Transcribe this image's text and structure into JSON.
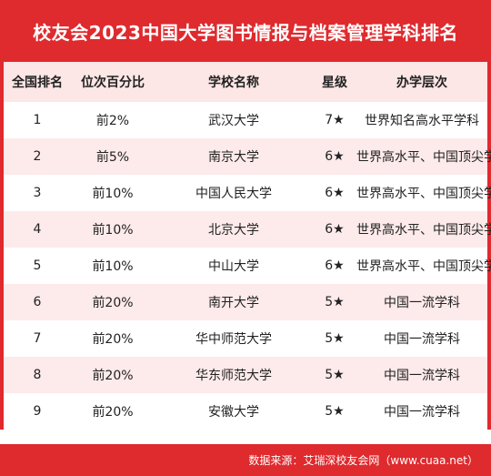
{
  "title": "校友会2023中国大学图书情报与档案管理学科排名",
  "headers": [
    "全国排名",
    "位次百分比",
    "学校名称",
    "星级",
    "办学层次"
  ],
  "rows": [
    {
      "rank": "1",
      "percentile": "前2%",
      "school": "武汉大学",
      "stars": "7★",
      "level": "世界知名高水平学科"
    },
    {
      "rank": "2",
      "percentile": "前5%",
      "school": "南京大学",
      "stars": "6★",
      "level": "世界高水平、中国顶尖学科"
    },
    {
      "rank": "3",
      "percentile": "前10%",
      "school": "中国人民大学",
      "stars": "6★",
      "level": "世界高水平、中国顶尖学科"
    },
    {
      "rank": "4",
      "percentile": "前10%",
      "school": "北京大学",
      "stars": "6★",
      "level": "世界高水平、中国顶尖学科"
    },
    {
      "rank": "5",
      "percentile": "前10%",
      "school": "中山大学",
      "stars": "6★",
      "level": "世界高水平、中国顶尖学科"
    },
    {
      "rank": "6",
      "percentile": "前20%",
      "school": "南开大学",
      "stars": "5★",
      "level": "中国一流学科"
    },
    {
      "rank": "7",
      "percentile": "前20%",
      "school": "华中师范大学",
      "stars": "5★",
      "level": "中国一流学科"
    },
    {
      "rank": "8",
      "percentile": "前20%",
      "school": "华东师范大学",
      "stars": "5★",
      "level": "中国一流学科"
    },
    {
      "rank": "9",
      "percentile": "前20%",
      "school": "安徽大学",
      "stars": "5★",
      "level": "中国一流学科"
    }
  ],
  "source": "数据来源：艾瑞深校友会网（www.cuaa.net）",
  "colors": {
    "accent": "#df2a2e",
    "header_bg": "#fde6e6",
    "stripe": "#fdeaea"
  }
}
